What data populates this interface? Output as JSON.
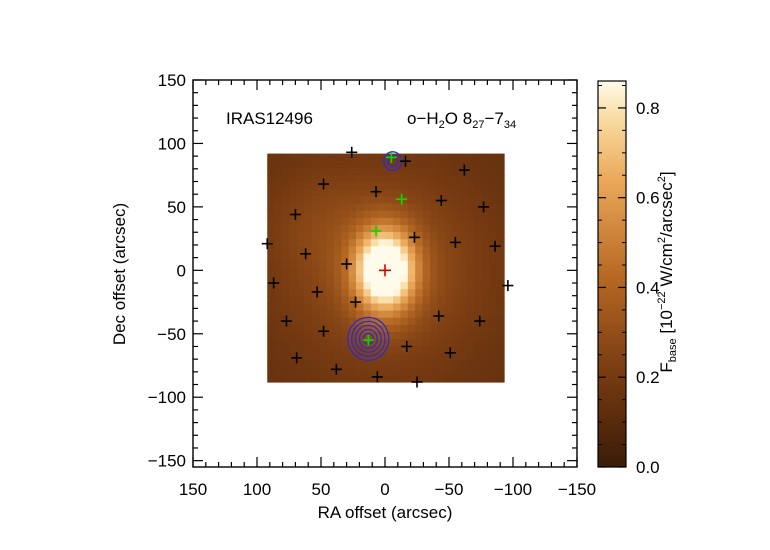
{
  "chart_data": {
    "type": "heatmap",
    "target_label": "IRAS12496",
    "line_label": {
      "base": "o−H",
      "sub1": "2",
      "mid": "O 8",
      "sub2": "27",
      "dash": "−7",
      "sub3": "34"
    },
    "xlabel": "RA offset (arcsec)",
    "ylabel": "Dec offset (arcsec)",
    "xlim": [
      150,
      -150
    ],
    "ylim": [
      -155,
      150
    ],
    "xticks": [
      150,
      100,
      50,
      0,
      -50,
      -100,
      -150
    ],
    "xtick_labels": [
      "150",
      "100",
      "50",
      "0",
      "−50",
      "−100",
      "−150"
    ],
    "yticks": [
      150,
      100,
      50,
      0,
      -50,
      -100,
      -150
    ],
    "ytick_labels": [
      "150",
      "100",
      "50",
      "0",
      "−50",
      "−100",
      "−150"
    ],
    "map_extent": {
      "ra": [
        92,
        -93
      ],
      "dec": [
        -88,
        92
      ]
    },
    "colorbar": {
      "range": [
        0.0,
        0.86
      ],
      "ticks": [
        0.0,
        0.2,
        0.4,
        0.6,
        0.8
      ],
      "tick_labels": [
        "0.0",
        "0.2",
        "0.4",
        "0.6",
        "0.8"
      ],
      "label": {
        "f": "F",
        "f_sub": "base",
        "open": " [10",
        "exp1": "−22",
        "unit1": " W/cm",
        "exp2": "2",
        "unit2": "/arcsec",
        "exp3": "2",
        "close": "]"
      }
    },
    "colors": {
      "low": "#3a1c08",
      "mid": "#b26420",
      "high": "#fffbea",
      "contour": "#2a2ad8",
      "spaxel_marker": "#000000",
      "peak_marker": "#dd0000",
      "source_marker": "#00dd00"
    },
    "emission_peak": {
      "ra": 0,
      "dec": 0,
      "peak_value": 0.86
    },
    "spaxel_positions": [
      [
        26,
        93
      ],
      [
        -16,
        86
      ],
      [
        -62,
        79
      ],
      [
        48,
        68
      ],
      [
        7,
        62
      ],
      [
        -44,
        55
      ],
      [
        -77,
        50
      ],
      [
        70,
        44
      ],
      [
        -23,
        26
      ],
      [
        -55,
        22
      ],
      [
        -86,
        19
      ],
      [
        92,
        21
      ],
      [
        62,
        13
      ],
      [
        30,
        5
      ],
      [
        87,
        -10
      ],
      [
        -96,
        -12
      ],
      [
        53,
        -17
      ],
      [
        23,
        -25
      ],
      [
        -42,
        -36
      ],
      [
        -74,
        -40
      ],
      [
        77,
        -40
      ],
      [
        48,
        -48
      ],
      [
        -17,
        -60
      ],
      [
        -51,
        -65
      ],
      [
        69,
        -69
      ],
      [
        38,
        -78
      ],
      [
        6,
        -84
      ],
      [
        -25,
        -88
      ]
    ],
    "red_marker": {
      "ra": 0,
      "dec": 0
    },
    "green_markers": [
      [
        -5,
        89
      ],
      [
        -13,
        56
      ],
      [
        7,
        31
      ],
      [
        13,
        -55
      ]
    ],
    "contours": [
      {
        "ra": 13,
        "dec": -54,
        "radii": [
          4,
          7,
          10,
          13,
          16
        ]
      },
      {
        "ra": -6,
        "dec": 86,
        "radii": [
          4,
          7
        ]
      }
    ]
  }
}
